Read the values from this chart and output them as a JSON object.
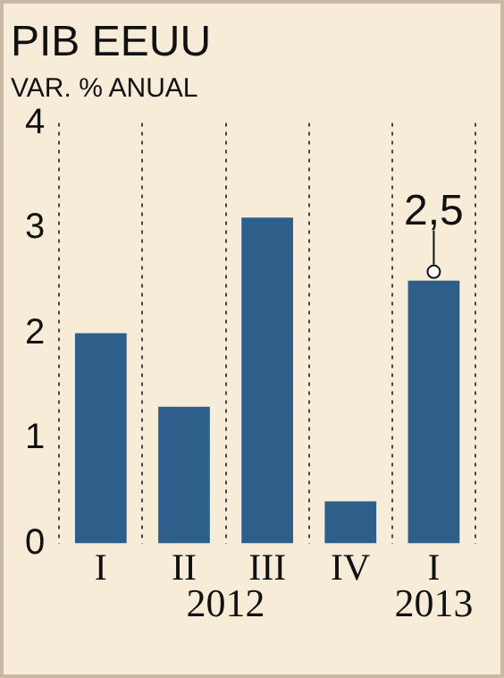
{
  "chart_data": {
    "type": "bar",
    "title": "PIB EEUU",
    "subtitle": "VAR. % ANUAL",
    "categories": [
      "I",
      "II",
      "III",
      "IV",
      "I"
    ],
    "values": [
      2.0,
      1.3,
      3.1,
      0.4,
      2.5
    ],
    "value_labels": [
      null,
      null,
      null,
      null,
      "2,5"
    ],
    "color": "#2e5f8a",
    "ylim": [
      0,
      4
    ],
    "yticks": [
      0,
      1,
      2,
      3,
      4
    ],
    "grid": "x",
    "annotations": [
      "2012",
      "2013"
    ]
  }
}
